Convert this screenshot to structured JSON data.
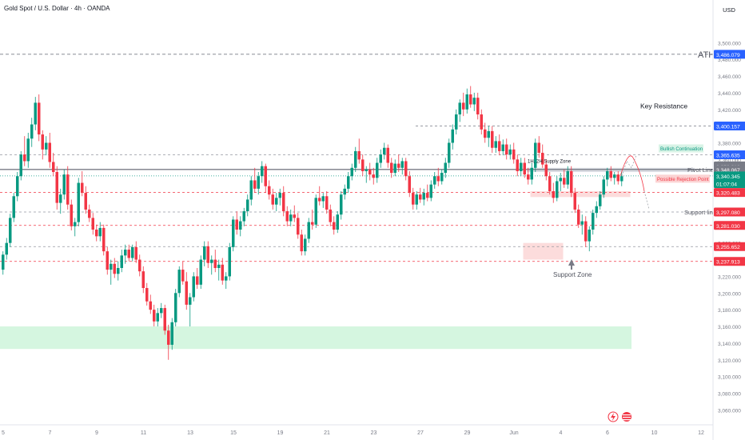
{
  "header": {
    "title": "Gold Spot / U.S. Dollar · 4h · OANDA",
    "currency": "USD"
  },
  "chart_data": {
    "type": "candlestick",
    "y_axis": {
      "ylim": [
        3045,
        3530
      ],
      "ticks": [
        "3,500.000",
        "3,480.000",
        "3,460.000",
        "3,440.000",
        "3,420.000",
        "3,380.000",
        "3,360.000",
        "3,340.000",
        "3,320.000",
        "3,300.000",
        "3,280.000",
        "3,260.000",
        "3,240.000",
        "3,220.000",
        "3,200.000",
        "3,180.000",
        "3,160.000",
        "3,140.000",
        "3,120.000",
        "3,100.000",
        "3,080.000",
        "3,060.000"
      ],
      "tick_values": [
        3500,
        3480,
        3460,
        3440,
        3420,
        3380,
        3360,
        3340,
        3320,
        3300,
        3280,
        3260,
        3240,
        3220,
        3200,
        3180,
        3160,
        3140,
        3120,
        3100,
        3080,
        3060
      ]
    },
    "x_axis": {
      "ticks": [
        "5",
        "7",
        "9",
        "11",
        "13",
        "15",
        "19",
        "21",
        "23",
        "27",
        "29",
        "Jun",
        "4",
        "6",
        "10",
        "12",
        "16",
        "18",
        "20",
        "24",
        "26",
        "Jul",
        "3",
        "7",
        "9",
        "11"
      ],
      "tick_bars": [
        0,
        13,
        26,
        39,
        52,
        64,
        77,
        90,
        103,
        116,
        129,
        142,
        155,
        168,
        181,
        194,
        207,
        220,
        233,
        246,
        259,
        285,
        297,
        311,
        324,
        337
      ]
    },
    "price_labels": [
      {
        "text": "3,486.079",
        "value": 3486.079,
        "color": "#2962ff"
      },
      {
        "text": "3,400.157",
        "value": 3400.157,
        "color": "#2962ff"
      },
      {
        "text": "3,365.635",
        "value": 3365.635,
        "color": "#2962ff"
      },
      {
        "text": "3,352.318",
        "value": 3352.318,
        "color": "#787b86"
      },
      {
        "text": "3,348.067",
        "value": 3348.067,
        "color": "#787b86"
      },
      {
        "text": "3,340.345",
        "value": 3340.345,
        "color": "#089981"
      },
      {
        "text": "01:07:04",
        "value": 3331,
        "color": "#089981"
      },
      {
        "text": "3,320.483",
        "value": 3320.483,
        "color": "#f23645"
      },
      {
        "text": "3,297.080",
        "value": 3297.08,
        "color": "#f23645"
      },
      {
        "text": "3,281.030",
        "value": 3281.03,
        "color": "#f23645"
      },
      {
        "text": "3,255.652",
        "value": 3255.652,
        "color": "#f23645"
      },
      {
        "text": "3,237.913",
        "value": 3237.913,
        "color": "#f23645"
      }
    ],
    "annotations": {
      "ath": "ATH",
      "key_resistance": "Key Resistance",
      "bullish_continuation": "Bullish Continuation",
      "supply_zone": "1H, 2H Supply Zone",
      "pivot_line": "Pivot Line",
      "possible_rejection": "Possible Rejection Point",
      "support_line": "Support line",
      "support_zone": "Support Zone"
    },
    "candles": [
      [
        3228,
        3250,
        3222,
        3246
      ],
      [
        3246,
        3266,
        3240,
        3260
      ],
      [
        3260,
        3295,
        3255,
        3290
      ],
      [
        3290,
        3320,
        3285,
        3316
      ],
      [
        3316,
        3345,
        3310,
        3340
      ],
      [
        3340,
        3370,
        3335,
        3366
      ],
      [
        3366,
        3388,
        3352,
        3358
      ],
      [
        3358,
        3392,
        3350,
        3385
      ],
      [
        3385,
        3410,
        3375,
        3402
      ],
      [
        3402,
        3435,
        3395,
        3428
      ],
      [
        3428,
        3438,
        3382,
        3390
      ],
      [
        3390,
        3395,
        3360,
        3372
      ],
      [
        3372,
        3388,
        3365,
        3380
      ],
      [
        3380,
        3392,
        3350,
        3357
      ],
      [
        3357,
        3368,
        3340,
        3345
      ],
      [
        3345,
        3352,
        3300,
        3308
      ],
      [
        3308,
        3325,
        3295,
        3318
      ],
      [
        3318,
        3348,
        3312,
        3342
      ],
      [
        3342,
        3352,
        3300,
        3306
      ],
      [
        3306,
        3312,
        3275,
        3280
      ],
      [
        3280,
        3290,
        3268,
        3285
      ],
      [
        3285,
        3338,
        3280,
        3332
      ],
      [
        3332,
        3346,
        3316,
        3320
      ],
      [
        3320,
        3328,
        3295,
        3300
      ],
      [
        3300,
        3306,
        3285,
        3290
      ],
      [
        3290,
        3296,
        3270,
        3276
      ],
      [
        3276,
        3282,
        3262,
        3268
      ],
      [
        3268,
        3285,
        3262,
        3278
      ],
      [
        3278,
        3282,
        3245,
        3250
      ],
      [
        3250,
        3255,
        3222,
        3228
      ],
      [
        3228,
        3240,
        3210,
        3235
      ],
      [
        3235,
        3242,
        3218,
        3223
      ],
      [
        3223,
        3238,
        3215,
        3230
      ],
      [
        3230,
        3252,
        3225,
        3245
      ],
      [
        3245,
        3258,
        3235,
        3252
      ],
      [
        3252,
        3258,
        3238,
        3242
      ],
      [
        3242,
        3258,
        3238,
        3255
      ],
      [
        3255,
        3262,
        3236,
        3240
      ],
      [
        3240,
        3246,
        3220,
        3226
      ],
      [
        3226,
        3232,
        3200,
        3206
      ],
      [
        3206,
        3212,
        3185,
        3190
      ],
      [
        3190,
        3198,
        3175,
        3180
      ],
      [
        3180,
        3186,
        3160,
        3166
      ],
      [
        3166,
        3182,
        3160,
        3176
      ],
      [
        3176,
        3188,
        3170,
        3182
      ],
      [
        3182,
        3186,
        3150,
        3155
      ],
      [
        3155,
        3162,
        3120,
        3138
      ],
      [
        3138,
        3170,
        3132,
        3165
      ],
      [
        3165,
        3205,
        3160,
        3200
      ],
      [
        3200,
        3232,
        3195,
        3228
      ],
      [
        3228,
        3238,
        3210,
        3214
      ],
      [
        3214,
        3225,
        3180,
        3186
      ],
      [
        3186,
        3200,
        3160,
        3195
      ],
      [
        3195,
        3225,
        3190,
        3220
      ],
      [
        3220,
        3230,
        3205,
        3210
      ],
      [
        3210,
        3245,
        3205,
        3240
      ],
      [
        3240,
        3262,
        3232,
        3256
      ],
      [
        3256,
        3262,
        3230,
        3236
      ],
      [
        3236,
        3245,
        3222,
        3240
      ],
      [
        3240,
        3252,
        3225,
        3230
      ],
      [
        3230,
        3240,
        3215,
        3234
      ],
      [
        3234,
        3242,
        3210,
        3215
      ],
      [
        3215,
        3225,
        3205,
        3220
      ],
      [
        3220,
        3260,
        3215,
        3255
      ],
      [
        3255,
        3292,
        3250,
        3288
      ],
      [
        3288,
        3298,
        3270,
        3276
      ],
      [
        3276,
        3292,
        3268,
        3286
      ],
      [
        3286,
        3302,
        3280,
        3298
      ],
      [
        3298,
        3318,
        3292,
        3312
      ],
      [
        3312,
        3340,
        3305,
        3335
      ],
      [
        3335,
        3350,
        3320,
        3325
      ],
      [
        3325,
        3345,
        3318,
        3340
      ],
      [
        3340,
        3358,
        3332,
        3352
      ],
      [
        3352,
        3355,
        3320,
        3328
      ],
      [
        3328,
        3335,
        3312,
        3318
      ],
      [
        3318,
        3325,
        3300,
        3306
      ],
      [
        3306,
        3320,
        3298,
        3314
      ],
      [
        3314,
        3325,
        3305,
        3320
      ],
      [
        3320,
        3328,
        3292,
        3298
      ],
      [
        3298,
        3304,
        3280,
        3286
      ],
      [
        3286,
        3300,
        3280,
        3294
      ],
      [
        3294,
        3305,
        3285,
        3290
      ],
      [
        3290,
        3296,
        3265,
        3270
      ],
      [
        3270,
        3276,
        3245,
        3250
      ],
      [
        3250,
        3270,
        3245,
        3265
      ],
      [
        3265,
        3290,
        3260,
        3285
      ],
      [
        3285,
        3300,
        3276,
        3282
      ],
      [
        3282,
        3318,
        3278,
        3314
      ],
      [
        3314,
        3328,
        3305,
        3310
      ],
      [
        3310,
        3320,
        3302,
        3316
      ],
      [
        3316,
        3322,
        3295,
        3300
      ],
      [
        3300,
        3306,
        3280,
        3285
      ],
      [
        3285,
        3292,
        3270,
        3276
      ],
      [
        3276,
        3298,
        3272,
        3294
      ],
      [
        3294,
        3322,
        3288,
        3318
      ],
      [
        3318,
        3330,
        3312,
        3325
      ],
      [
        3325,
        3345,
        3320,
        3340
      ],
      [
        3340,
        3355,
        3335,
        3350
      ],
      [
        3350,
        3375,
        3345,
        3370
      ],
      [
        3370,
        3385,
        3355,
        3360
      ],
      [
        3360,
        3366,
        3340,
        3346
      ],
      [
        3346,
        3352,
        3332,
        3348
      ],
      [
        3348,
        3356,
        3335,
        3342
      ],
      [
        3342,
        3350,
        3330,
        3338
      ],
      [
        3338,
        3362,
        3332,
        3356
      ],
      [
        3356,
        3372,
        3350,
        3366
      ],
      [
        3366,
        3380,
        3360,
        3374
      ],
      [
        3374,
        3378,
        3350,
        3356
      ],
      [
        3356,
        3362,
        3338,
        3344
      ],
      [
        3344,
        3360,
        3340,
        3355
      ],
      [
        3355,
        3366,
        3345,
        3350
      ],
      [
        3350,
        3362,
        3342,
        3358
      ],
      [
        3358,
        3362,
        3335,
        3340
      ],
      [
        3340,
        3346,
        3315,
        3320
      ],
      [
        3320,
        3326,
        3300,
        3306
      ],
      [
        3306,
        3322,
        3300,
        3318
      ],
      [
        3318,
        3326,
        3308,
        3312
      ],
      [
        3312,
        3325,
        3305,
        3320
      ],
      [
        3320,
        3330,
        3310,
        3314
      ],
      [
        3314,
        3335,
        3310,
        3330
      ],
      [
        3330,
        3345,
        3325,
        3340
      ],
      [
        3340,
        3350,
        3328,
        3334
      ],
      [
        3334,
        3348,
        3330,
        3344
      ],
      [
        3344,
        3362,
        3338,
        3356
      ],
      [
        3356,
        3385,
        3350,
        3380
      ],
      [
        3380,
        3402,
        3372,
        3396
      ],
      [
        3396,
        3420,
        3390,
        3414
      ],
      [
        3414,
        3432,
        3405,
        3428
      ],
      [
        3428,
        3440,
        3412,
        3420
      ],
      [
        3420,
        3445,
        3415,
        3438
      ],
      [
        3438,
        3448,
        3422,
        3426
      ],
      [
        3426,
        3440,
        3418,
        3434
      ],
      [
        3434,
        3440,
        3408,
        3414
      ],
      [
        3414,
        3420,
        3390,
        3396
      ],
      [
        3396,
        3404,
        3380,
        3386
      ],
      [
        3386,
        3400,
        3375,
        3394
      ],
      [
        3394,
        3400,
        3368,
        3374
      ],
      [
        3374,
        3388,
        3368,
        3382
      ],
      [
        3382,
        3390,
        3365,
        3370
      ],
      [
        3370,
        3384,
        3365,
        3378
      ],
      [
        3378,
        3385,
        3360,
        3366
      ],
      [
        3366,
        3378,
        3360,
        3372
      ],
      [
        3372,
        3380,
        3355,
        3360
      ],
      [
        3360,
        3366,
        3340,
        3346
      ],
      [
        3346,
        3362,
        3340,
        3356
      ],
      [
        3356,
        3362,
        3338,
        3342
      ],
      [
        3342,
        3350,
        3330,
        3336
      ],
      [
        3336,
        3356,
        3330,
        3350
      ],
      [
        3350,
        3385,
        3345,
        3380
      ],
      [
        3380,
        3388,
        3362,
        3368
      ],
      [
        3368,
        3378,
        3350,
        3354
      ],
      [
        3354,
        3360,
        3335,
        3340
      ],
      [
        3340,
        3345,
        3318,
        3322
      ],
      [
        3322,
        3332,
        3308,
        3314
      ],
      [
        3314,
        3340,
        3310,
        3334
      ],
      [
        3334,
        3344,
        3322,
        3338
      ],
      [
        3338,
        3348,
        3326,
        3330
      ],
      [
        3330,
        3352,
        3325,
        3346
      ],
      [
        3346,
        3352,
        3315,
        3320
      ],
      [
        3320,
        3326,
        3296,
        3300
      ],
      [
        3300,
        3306,
        3278,
        3282
      ],
      [
        3282,
        3294,
        3270,
        3286
      ],
      [
        3286,
        3292,
        3255,
        3262
      ],
      [
        3262,
        3280,
        3250,
        3276
      ],
      [
        3276,
        3300,
        3270,
        3296
      ],
      [
        3296,
        3310,
        3290,
        3304
      ],
      [
        3304,
        3322,
        3300,
        3318
      ],
      [
        3318,
        3340,
        3314,
        3336
      ],
      [
        3336,
        3350,
        3328,
        3346
      ],
      [
        3346,
        3352,
        3334,
        3338
      ],
      [
        3338,
        3345,
        3330,
        3342
      ],
      [
        3342,
        3346,
        3330,
        3334
      ],
      [
        3334,
        3345,
        3328,
        3340
      ]
    ]
  }
}
